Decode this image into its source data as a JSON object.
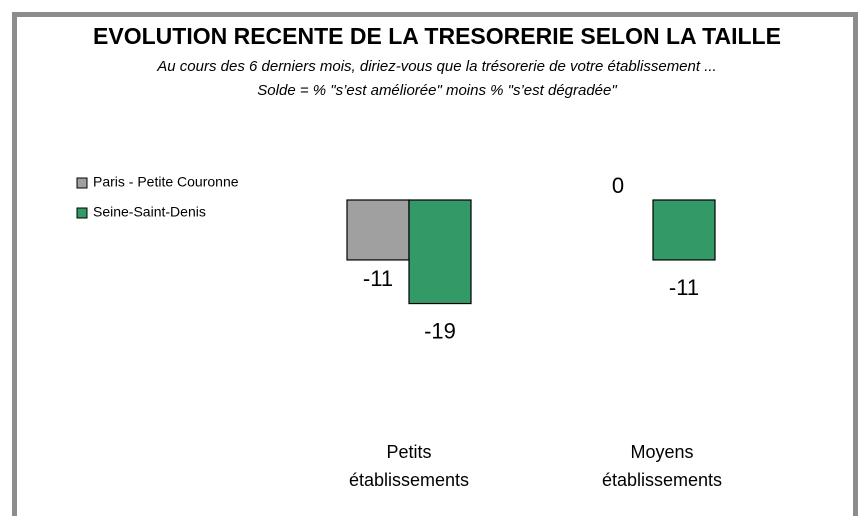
{
  "chart_data": {
    "type": "bar",
    "title": "EVOLUTION RECENTE DE LA TRESORERIE SELON LA TAILLE",
    "subtitle": [
      "Au cours des 6 derniers mois, diriez-vous que la trésorerie de votre établissement ...",
      "Solde = %  \"s’est améliorée\"  moins %  \"s’est dégradée\""
    ],
    "categories": [
      "Petits établissements",
      "Moyens établissements"
    ],
    "series": [
      {
        "name": "Paris - Petite Couronne",
        "color": "#a0a0a0",
        "values": [
          -11,
          0
        ]
      },
      {
        "name": "Seine-Saint-Denis",
        "color": "#339966",
        "values": [
          -19,
          -11
        ]
      }
    ]
  }
}
